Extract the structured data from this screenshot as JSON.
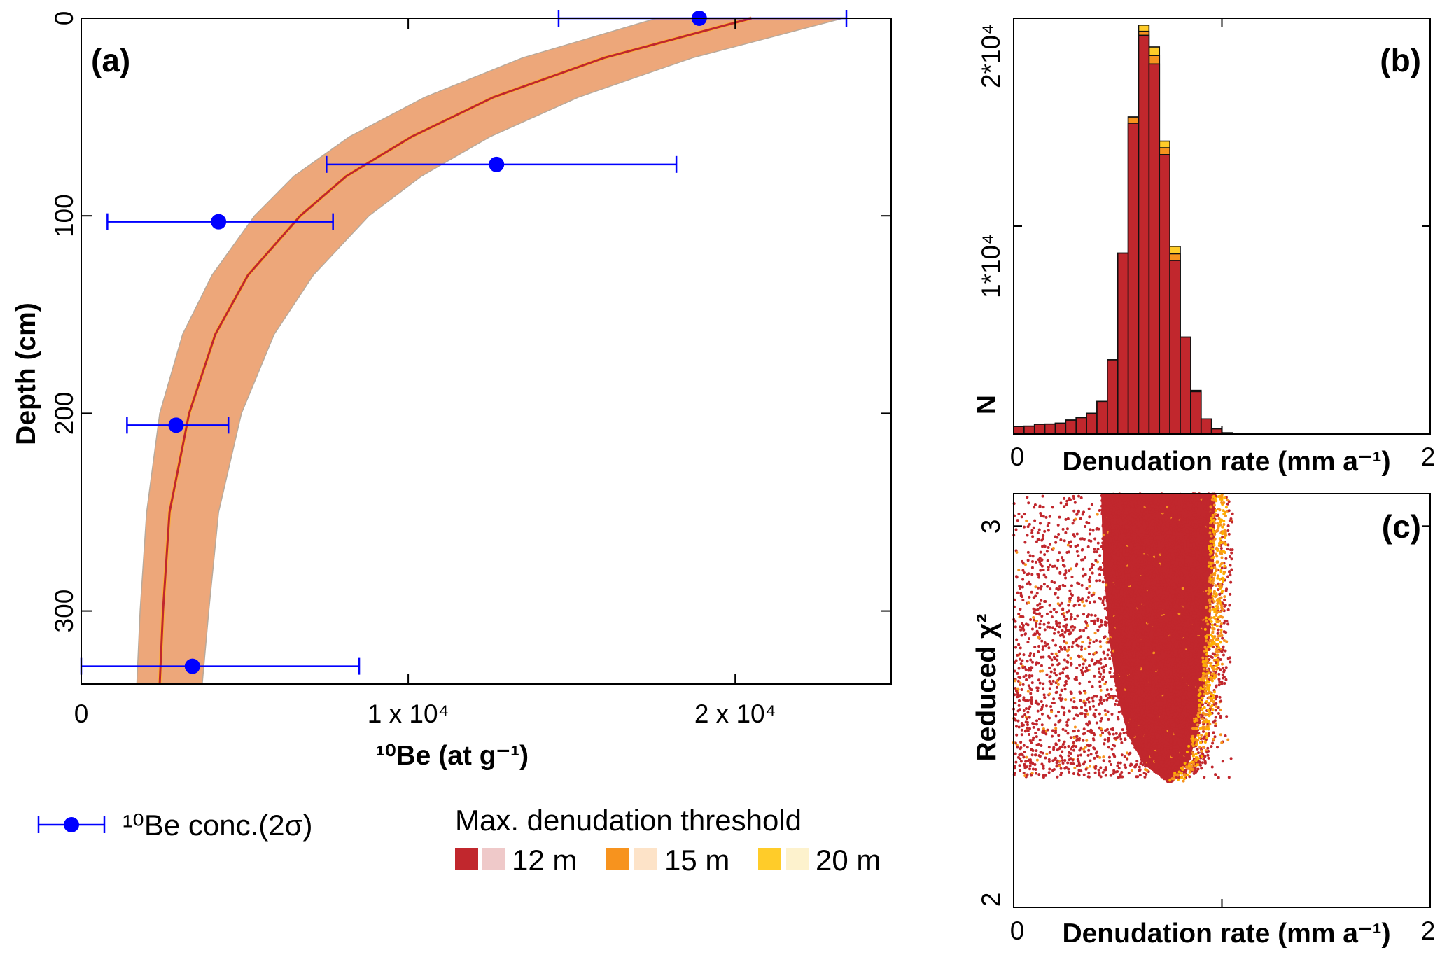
{
  "chart_data": [
    {
      "panel": "(a)",
      "type": "line",
      "xlabel": "¹⁰Be (at g⁻¹)",
      "ylabel": "Depth (cm)",
      "xlim": [
        0,
        24770
      ],
      "ylim": [
        337,
        0
      ],
      "xticks": [
        0,
        10000,
        20000
      ],
      "xtick_labels": [
        "0",
        "1 x 10⁴",
        "2 x 10⁴"
      ],
      "yticks": [
        0,
        100,
        200,
        300
      ],
      "ytick_labels": [
        "0",
        "100",
        "200",
        "300"
      ],
      "grid": false,
      "measurements": {
        "name": "¹⁰Be conc.(2σ)",
        "color": "#0000ff",
        "points": [
          {
            "conc": 18900,
            "depth": 0,
            "err_low": 14600,
            "err_high": 23400
          },
          {
            "conc": 12700,
            "depth": 74,
            "err_low": 7500,
            "err_high": 18200
          },
          {
            "conc": 4200,
            "depth": 103,
            "err_low": 800,
            "err_high": 7700
          },
          {
            "conc": 2900,
            "depth": 206,
            "err_low": 1400,
            "err_high": 4500
          },
          {
            "conc": 3400,
            "depth": 328,
            "err_low": 0,
            "err_high": 8500
          }
        ]
      },
      "model_depths": [
        0,
        20,
        40,
        60,
        80,
        100,
        130,
        160,
        200,
        250,
        300,
        337
      ],
      "best_fit": [
        20500,
        16000,
        12600,
        10100,
        8100,
        6700,
        5100,
        4100,
        3300,
        2700,
        2500,
        2400
      ],
      "envelope_low": [
        17600,
        13500,
        10500,
        8200,
        6500,
        5300,
        4000,
        3100,
        2400,
        2000,
        1800,
        1700
      ],
      "envelope_high": [
        23300,
        18700,
        15200,
        12500,
        10400,
        8800,
        7100,
        5900,
        4900,
        4200,
        3900,
        3700
      ],
      "colors": {
        "best_fit": "#c1272d",
        "envelope": "#eda77a",
        "best_fit_inner": "#fbb03b"
      }
    },
    {
      "panel": "(b)",
      "type": "bar",
      "xlabel": "Denudation rate (mm a⁻¹)",
      "ylabel": "N",
      "xlim": [
        0,
        2
      ],
      "ylim": [
        0,
        20000
      ],
      "xtick_labels": [
        "0",
        "2"
      ],
      "ytick_labels": [
        "1*10⁴",
        "2*10⁴"
      ],
      "yticks": [
        10000,
        20000
      ],
      "bin_width": 0.05,
      "bin_starts": [
        0,
        0.05,
        0.1,
        0.15,
        0.2,
        0.25,
        0.3,
        0.35,
        0.4,
        0.45,
        0.5,
        0.55,
        0.6,
        0.65,
        0.7,
        0.75,
        0.8,
        0.85,
        0.9,
        0.95,
        1.0,
        1.05
      ],
      "series": [
        {
          "name": "20 m",
          "color": "#ffcc29",
          "values": [
            364,
            380,
            470,
            480,
            520,
            670,
            790,
            1000,
            1570,
            3570,
            8700,
            15250,
            19670,
            18620,
            14090,
            9030,
            4660,
            2100,
            730,
            250,
            60,
            30
          ]
        },
        {
          "name": "15 m",
          "color": "#f7931e",
          "values": [
            364,
            380,
            470,
            480,
            520,
            670,
            790,
            1000,
            1570,
            3570,
            8700,
            15250,
            19370,
            18210,
            13770,
            8670,
            4660,
            2080,
            730,
            250,
            60,
            30
          ]
        },
        {
          "name": "12 m",
          "color": "#c1272d",
          "values": [
            364,
            380,
            470,
            480,
            520,
            670,
            790,
            1000,
            1570,
            3570,
            8700,
            14950,
            19180,
            17800,
            13440,
            8350,
            4660,
            2040,
            730,
            250,
            60,
            30
          ]
        }
      ]
    },
    {
      "panel": "(c)",
      "type": "scatter",
      "xlabel": "Denudation rate (mm a⁻¹)",
      "ylabel": "Reduced χ²",
      "xlim": [
        0,
        2
      ],
      "ylim": [
        2,
        3.085
      ],
      "xtick_labels": [
        "0",
        "2"
      ],
      "ytick_labels": [
        "2",
        "3"
      ],
      "yticks": [
        2,
        3
      ],
      "dense_core_envelope": [
        [
          3.085,
          0.42,
          0.97
        ],
        [
          2.9,
          0.43,
          0.96
        ],
        [
          2.7,
          0.46,
          0.94
        ],
        [
          2.55,
          0.5,
          0.91
        ],
        [
          2.45,
          0.55,
          0.88
        ],
        [
          2.38,
          0.62,
          0.84
        ],
        [
          2.33,
          0.74,
          0.76
        ]
      ],
      "sparse_extent": {
        "rate": [
          0,
          1.05
        ],
        "chi2": [
          2.34,
          3.085
        ]
      },
      "colors": [
        "#c1272d",
        "#f7931e",
        "#ffb000"
      ]
    }
  ],
  "legend": {
    "measurement_label": "¹⁰Be conc.(2σ)",
    "threshold_title": "Max. denudation threshold",
    "thresholds": [
      {
        "label": "12 m",
        "color": "#c1272d",
        "light": "#efc9c9"
      },
      {
        "label": "15 m",
        "color": "#f7931e",
        "light": "#fde3c8"
      },
      {
        "label": "20 m",
        "color": "#ffcc29",
        "light": "#fdf2cd"
      }
    ]
  }
}
